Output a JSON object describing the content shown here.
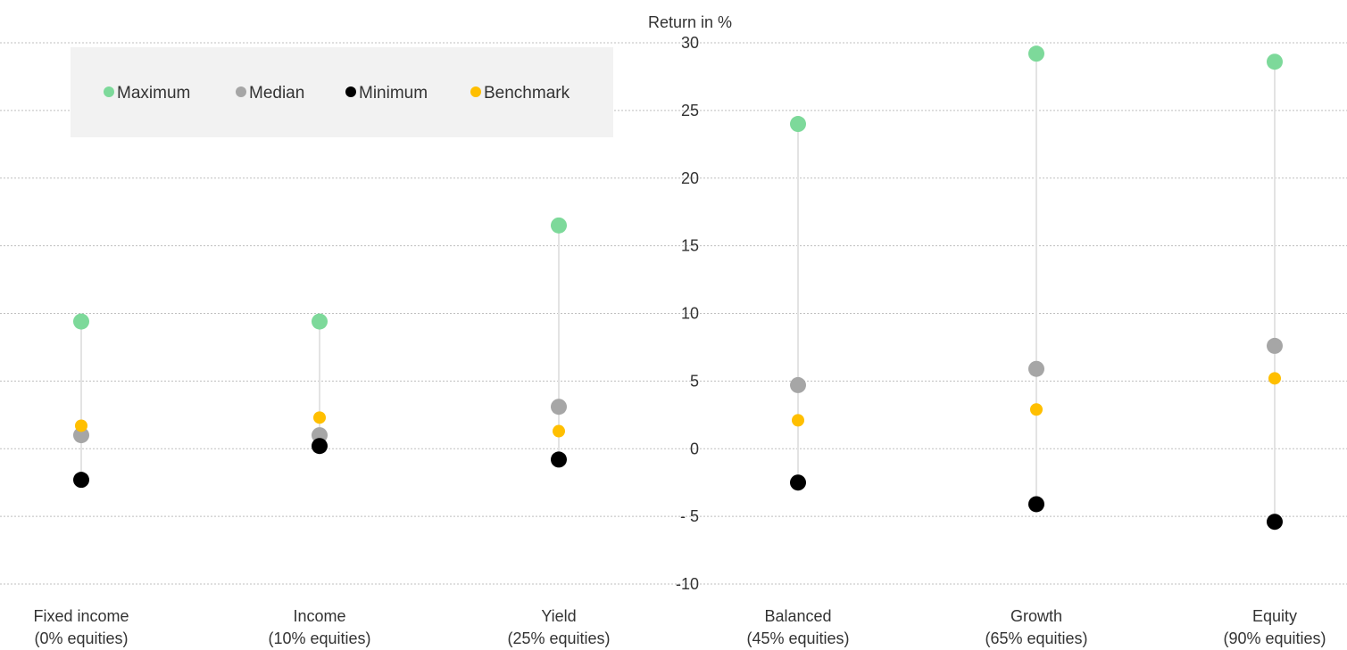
{
  "chart_data": {
    "type": "scatter",
    "ylabel": "Return in %",
    "ylim": [
      -10,
      30
    ],
    "yticks": [
      30,
      25,
      20,
      15,
      10,
      5,
      0,
      -5,
      -10
    ],
    "ytick_labels": [
      "30",
      "25",
      "20",
      "15",
      "10",
      "5",
      "0",
      "- 5",
      "-10"
    ],
    "grid": true,
    "legend_position": "top-left",
    "categories": [
      {
        "line1": "Fixed income",
        "line2": "(0% equities)"
      },
      {
        "line1": "Income",
        "line2": "(10% equities)"
      },
      {
        "line1": "Yield",
        "line2": "(25% equities)"
      },
      {
        "line1": "Balanced",
        "line2": "(45% equities)"
      },
      {
        "line1": "Growth",
        "line2": "(65% equities)"
      },
      {
        "line1": "Equity",
        "line2": "(90% equities)"
      }
    ],
    "series": [
      {
        "name": "Maximum",
        "color": "#7dd99a",
        "values": [
          9.4,
          9.4,
          16.5,
          24.0,
          29.2,
          28.6
        ]
      },
      {
        "name": "Median",
        "color": "#a6a6a6",
        "values": [
          1.0,
          1.0,
          3.1,
          4.7,
          5.9,
          7.6
        ]
      },
      {
        "name": "Minimum",
        "color": "#000000",
        "values": [
          -2.3,
          0.2,
          -0.8,
          -2.5,
          -4.1,
          -5.4
        ]
      },
      {
        "name": "Benchmark",
        "color": "#ffbf00",
        "values": [
          1.7,
          2.3,
          1.3,
          2.1,
          2.9,
          5.2
        ]
      }
    ]
  }
}
